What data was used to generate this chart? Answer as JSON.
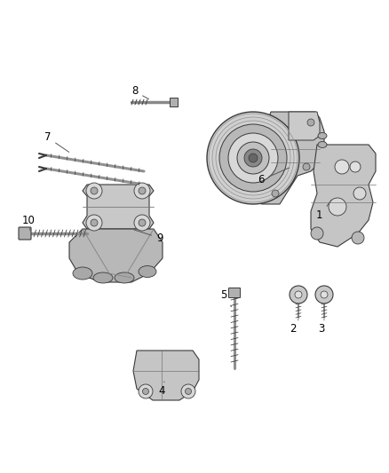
{
  "bg_color": "#ffffff",
  "label_color": "#000000",
  "dc": "#3a3a3a",
  "fig_width": 4.38,
  "fig_height": 5.33,
  "dpi": 100,
  "parts_gray": "#c8c8c8",
  "dark_gray": "#888888",
  "light_gray": "#e0e0e0",
  "mid_gray": "#aaaaaa"
}
